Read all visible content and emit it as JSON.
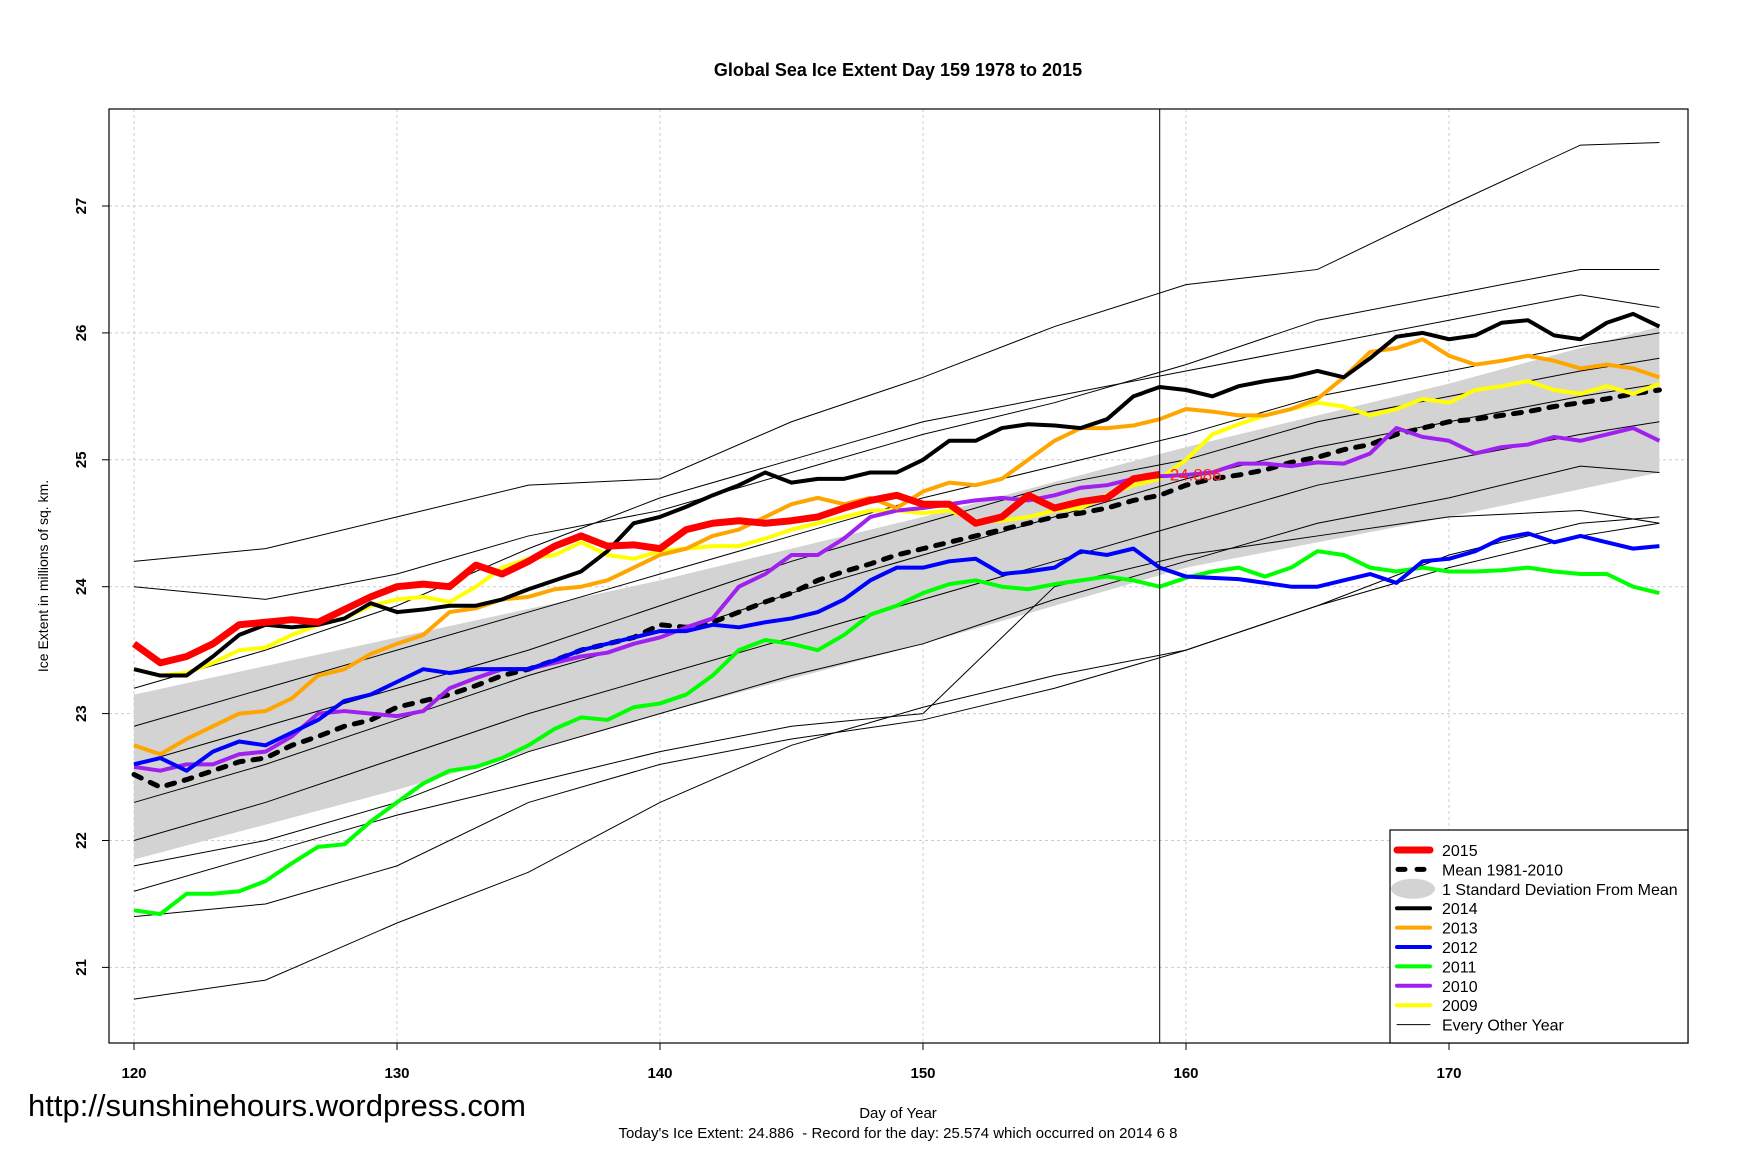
{
  "chart_data": {
    "type": "line",
    "title": "Global Sea Ice Extent Day 159 1978 to 2015",
    "xlabel": "Day of Year",
    "ylabel": "Ice Extent in millions of sq. km.",
    "footer": "Today's Ice Extent: 24.886  - Record for the day: 25.574 which occurred on 2014 6 8",
    "watermark": "http://sunshinehours.wordpress.com",
    "xlim": [
      119,
      179
    ],
    "ylim": [
      20.4,
      27.8
    ],
    "xticks": [
      120,
      130,
      140,
      150,
      160,
      170
    ],
    "yticks": [
      21,
      22,
      23,
      24,
      25,
      26,
      27
    ],
    "grid": true,
    "current_day": 159,
    "current_value_label": "24.886",
    "legend_position": "bottom-right",
    "legend": [
      {
        "label": "2015",
        "color": "#ff0000",
        "style": "thick"
      },
      {
        "label": "Mean 1981-2010",
        "color": "#000000",
        "style": "dashed"
      },
      {
        "label": "1 Standard Deviation From Mean",
        "color": "#d3d3d3",
        "style": "band"
      },
      {
        "label": "2014",
        "color": "#000000",
        "style": "line"
      },
      {
        "label": "2013",
        "color": "#ffa500",
        "style": "line"
      },
      {
        "label": "2012",
        "color": "#0000ff",
        "style": "line"
      },
      {
        "label": "2011",
        "color": "#00ff00",
        "style": "line"
      },
      {
        "label": "2010",
        "color": "#a020f0",
        "style": "line"
      },
      {
        "label": "2009",
        "color": "#ffff00",
        "style": "line"
      },
      {
        "label": "Every Other Year",
        "color": "#000000",
        "style": "thin"
      }
    ],
    "sd_band": {
      "x": [
        120,
        130,
        140,
        150,
        160,
        170,
        178
      ],
      "upper": [
        23.15,
        23.6,
        24.05,
        24.55,
        25.1,
        25.6,
        26.05
      ],
      "lower": [
        21.85,
        22.4,
        23.0,
        23.55,
        24.15,
        24.55,
        24.9
      ]
    },
    "mean": {
      "x": [
        120,
        121,
        122,
        123,
        124,
        125,
        126,
        127,
        128,
        129,
        130,
        131,
        132,
        133,
        134,
        135,
        136,
        137,
        138,
        139,
        140,
        141,
        142,
        143,
        144,
        145,
        146,
        147,
        148,
        149,
        150,
        151,
        152,
        153,
        154,
        155,
        156,
        157,
        158,
        159,
        160,
        161,
        162,
        163,
        164,
        165,
        166,
        167,
        168,
        169,
        170,
        171,
        172,
        173,
        174,
        175,
        176,
        177,
        178
      ],
      "y": [
        22.52,
        22.42,
        22.48,
        22.55,
        22.62,
        22.65,
        22.75,
        22.82,
        22.9,
        22.95,
        23.05,
        23.1,
        23.15,
        23.22,
        23.3,
        23.35,
        23.42,
        23.5,
        23.55,
        23.6,
        23.7,
        23.68,
        23.72,
        23.8,
        23.88,
        23.95,
        24.05,
        24.12,
        24.18,
        24.25,
        24.3,
        24.35,
        24.4,
        24.45,
        24.5,
        24.55,
        24.58,
        24.62,
        24.68,
        24.72,
        24.8,
        24.85,
        24.88,
        24.92,
        24.98,
        25.02,
        25.08,
        25.12,
        25.2,
        25.25,
        25.3,
        25.32,
        25.35,
        25.38,
        25.42,
        25.45,
        25.48,
        25.52,
        25.55
      ]
    },
    "series": [
      {
        "name": "2015",
        "color": "#ff0000",
        "width": 7,
        "x0": 120,
        "y": [
          23.55,
          23.4,
          23.45,
          23.55,
          23.7,
          23.72,
          23.74,
          23.72,
          23.82,
          23.92,
          24.0,
          24.02,
          24.0,
          24.17,
          24.1,
          24.2,
          24.32,
          24.4,
          24.32,
          24.33,
          24.3,
          24.45,
          24.5,
          24.52,
          24.5,
          24.52,
          24.55,
          24.62,
          24.68,
          24.72,
          24.65,
          24.65,
          24.5,
          24.55,
          24.72,
          24.62,
          24.67,
          24.7,
          24.85,
          24.886
        ]
      },
      {
        "name": "2014",
        "color": "#000000",
        "width": 4,
        "x0": 120,
        "y": [
          23.35,
          23.3,
          23.3,
          23.45,
          23.62,
          23.7,
          23.68,
          23.7,
          23.75,
          23.87,
          23.8,
          23.82,
          23.85,
          23.85,
          23.9,
          23.98,
          24.05,
          24.12,
          24.28,
          24.5,
          24.55,
          24.63,
          24.72,
          24.8,
          24.9,
          24.82,
          24.85,
          24.85,
          24.9,
          24.9,
          25.0,
          25.15,
          25.15,
          25.25,
          25.28,
          25.27,
          25.25,
          25.32,
          25.5,
          25.574,
          25.55,
          25.5,
          25.58,
          25.62,
          25.65,
          25.7,
          25.65,
          25.8,
          25.97,
          26.0,
          25.95,
          25.98,
          26.08,
          26.1,
          25.98,
          25.95,
          26.08,
          26.15,
          26.05
        ]
      },
      {
        "name": "2013",
        "color": "#ffa500",
        "width": 4,
        "x0": 120,
        "y": [
          22.75,
          22.68,
          22.8,
          22.9,
          23.0,
          23.02,
          23.12,
          23.3,
          23.35,
          23.47,
          23.55,
          23.62,
          23.8,
          23.83,
          23.9,
          23.92,
          23.98,
          24.0,
          24.05,
          24.15,
          24.25,
          24.3,
          24.4,
          24.45,
          24.55,
          24.65,
          24.7,
          24.65,
          24.7,
          24.62,
          24.75,
          24.82,
          24.8,
          24.85,
          25.0,
          25.15,
          25.25,
          25.25,
          25.27,
          25.32,
          25.4,
          25.38,
          25.35,
          25.35,
          25.4,
          25.48,
          25.65,
          25.85,
          25.88,
          25.95,
          25.82,
          25.75,
          25.78,
          25.82,
          25.78,
          25.72,
          25.75,
          25.72,
          25.65
        ]
      },
      {
        "name": "2012",
        "color": "#0000ff",
        "width": 4,
        "x0": 120,
        "y": [
          22.6,
          22.65,
          22.55,
          22.7,
          22.78,
          22.75,
          22.85,
          22.95,
          23.1,
          23.15,
          23.25,
          23.35,
          23.32,
          23.35,
          23.35,
          23.35,
          23.42,
          23.5,
          23.55,
          23.6,
          23.65,
          23.65,
          23.7,
          23.68,
          23.72,
          23.75,
          23.8,
          23.9,
          24.05,
          24.15,
          24.15,
          24.2,
          24.22,
          24.1,
          24.12,
          24.15,
          24.28,
          24.25,
          24.3,
          24.15,
          24.08,
          24.07,
          24.06,
          24.03,
          24.0,
          24.0,
          24.05,
          24.1,
          24.03,
          24.2,
          24.22,
          24.28,
          24.38,
          24.42,
          24.35,
          24.4,
          24.35,
          24.3,
          24.32
        ]
      },
      {
        "name": "2011",
        "color": "#00ff00",
        "width": 4,
        "x0": 120,
        "y": [
          21.45,
          21.42,
          21.58,
          21.58,
          21.6,
          21.68,
          21.82,
          21.95,
          21.97,
          22.15,
          22.3,
          22.45,
          22.55,
          22.58,
          22.65,
          22.75,
          22.88,
          22.97,
          22.95,
          23.05,
          23.08,
          23.15,
          23.3,
          23.5,
          23.58,
          23.55,
          23.5,
          23.62,
          23.78,
          23.85,
          23.95,
          24.02,
          24.05,
          24.0,
          23.98,
          24.02,
          24.05,
          24.08,
          24.05,
          24.0,
          24.07,
          24.12,
          24.15,
          24.08,
          24.15,
          24.28,
          24.25,
          24.15,
          24.12,
          24.15,
          24.12,
          24.12,
          24.13,
          24.15,
          24.12,
          24.1,
          24.1,
          24.0,
          23.95
        ]
      },
      {
        "name": "2010",
        "color": "#a020f0",
        "width": 4,
        "x0": 120,
        "y": [
          22.58,
          22.55,
          22.6,
          22.6,
          22.68,
          22.7,
          22.82,
          23.0,
          23.02,
          23.0,
          22.98,
          23.02,
          23.2,
          23.28,
          23.35,
          23.35,
          23.4,
          23.45,
          23.48,
          23.55,
          23.6,
          23.68,
          23.75,
          24.0,
          24.1,
          24.25,
          24.25,
          24.38,
          24.55,
          24.6,
          24.62,
          24.65,
          24.68,
          24.7,
          24.68,
          24.72,
          24.78,
          24.8,
          24.85,
          24.87,
          24.88,
          24.9,
          24.97,
          24.97,
          24.95,
          24.98,
          24.97,
          25.05,
          25.25,
          25.18,
          25.15,
          25.05,
          25.1,
          25.12,
          25.18,
          25.15,
          25.2,
          25.25,
          25.15
        ]
      },
      {
        "name": "2009",
        "color": "#ffff00",
        "width": 4,
        "x0": 120,
        "y": [
          23.35,
          23.3,
          23.32,
          23.4,
          23.5,
          23.52,
          23.62,
          23.7,
          23.75,
          23.85,
          23.9,
          23.92,
          23.88,
          24.0,
          24.15,
          24.22,
          24.25,
          24.35,
          24.25,
          24.22,
          24.28,
          24.3,
          24.32,
          24.32,
          24.38,
          24.45,
          24.5,
          24.55,
          24.6,
          24.6,
          24.58,
          24.6,
          24.52,
          24.52,
          24.55,
          24.6,
          24.62,
          24.72,
          24.8,
          24.85,
          25.0,
          25.2,
          25.28,
          25.35,
          25.4,
          25.45,
          25.42,
          25.35,
          25.4,
          25.48,
          25.45,
          25.55,
          25.58,
          25.62,
          25.55,
          25.52,
          25.58,
          25.52,
          25.6
        ]
      }
    ],
    "other_years": {
      "x": [
        120,
        125,
        130,
        135,
        140,
        145,
        150,
        155,
        160,
        165,
        170,
        175,
        178
      ],
      "lines": [
        [
          24.2,
          24.3,
          24.55,
          24.8,
          24.85,
          25.3,
          25.65,
          26.05,
          26.38,
          26.5,
          27.0,
          27.48,
          27.5
        ],
        [
          24.0,
          23.9,
          24.1,
          24.4,
          24.6,
          24.9,
          25.2,
          25.45,
          25.75,
          26.1,
          26.3,
          26.5,
          26.5
        ],
        [
          23.2,
          23.5,
          23.85,
          24.3,
          24.7,
          25.0,
          25.3,
          25.5,
          25.7,
          25.9,
          26.1,
          26.3,
          26.2
        ],
        [
          22.9,
          23.2,
          23.5,
          23.8,
          24.1,
          24.4,
          24.7,
          24.95,
          25.2,
          25.5,
          25.7,
          25.9,
          26.0
        ],
        [
          22.6,
          22.9,
          23.2,
          23.5,
          23.85,
          24.2,
          24.5,
          24.8,
          25.0,
          25.3,
          25.5,
          25.7,
          25.8
        ],
        [
          22.3,
          22.6,
          22.95,
          23.3,
          23.6,
          23.95,
          24.25,
          24.55,
          24.85,
          25.1,
          25.3,
          25.5,
          25.6
        ],
        [
          22.0,
          22.3,
          22.65,
          23.0,
          23.3,
          23.6,
          23.9,
          24.2,
          24.5,
          24.8,
          25.0,
          25.2,
          25.3
        ],
        [
          21.8,
          22.0,
          22.3,
          22.7,
          23.0,
          23.3,
          23.55,
          23.9,
          24.2,
          24.5,
          24.7,
          24.95,
          24.9
        ],
        [
          21.6,
          21.9,
          22.2,
          22.45,
          22.7,
          22.9,
          23.0,
          24.0,
          24.25,
          24.4,
          24.55,
          24.6,
          24.5
        ],
        [
          21.4,
          21.5,
          21.8,
          22.3,
          22.6,
          22.8,
          22.95,
          23.2,
          23.5,
          23.85,
          24.15,
          24.4,
          24.5
        ],
        [
          20.75,
          20.9,
          21.35,
          21.75,
          22.3,
          22.75,
          23.05,
          23.3,
          23.5,
          23.85,
          24.25,
          24.5,
          24.55
        ]
      ]
    }
  }
}
